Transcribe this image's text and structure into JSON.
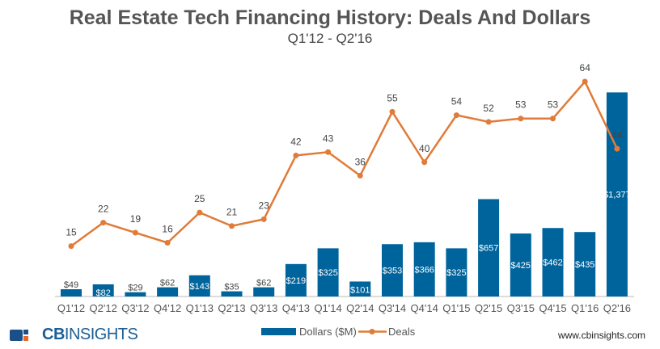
{
  "chart_data": {
    "type": "bar+line",
    "title": "Real Estate Tech  Financing History: Deals And Dollars",
    "subtitle": "Q1'12 - Q2'16",
    "categories": [
      "Q1'12",
      "Q2'12",
      "Q3'12",
      "Q4'12",
      "Q1'13",
      "Q2'13",
      "Q3'13",
      "Q4'13",
      "Q1'14",
      "Q2'14",
      "Q3'14",
      "Q4'14",
      "Q1'15",
      "Q2'15",
      "Q3'15",
      "Q4'15",
      "Q1'16",
      "Q2'16"
    ],
    "series": [
      {
        "name": "Dollars ($M)",
        "type": "bar",
        "color": "#00649c",
        "values": [
          49,
          82,
          29,
          62,
          143,
          35,
          62,
          219,
          325,
          101,
          353,
          366,
          325,
          657,
          425,
          462,
          435,
          1377
        ],
        "labels": [
          "$49",
          "$82",
          "$29",
          "$62",
          "$143",
          "$35",
          "$62",
          "$219",
          "$325",
          "$101",
          "$353",
          "$366",
          "$325",
          "$657",
          "$425",
          "$462",
          "$435",
          "$1,377"
        ]
      },
      {
        "name": "Deals",
        "type": "line",
        "color": "#e07b39",
        "values": [
          15,
          22,
          19,
          16,
          25,
          21,
          23,
          42,
          43,
          36,
          55,
          40,
          54,
          52,
          53,
          53,
          64,
          44
        ]
      }
    ],
    "ylim_dollars": [
      0,
      1450
    ],
    "ylim_deals": [
      0,
      64
    ],
    "grid": false,
    "legend": "bottom-center"
  },
  "footer": {
    "logo": "CBINSIGHTS",
    "logo_bold": "CB",
    "logo_rest": "INSIGHTS",
    "url": "www.cbinsights.com"
  }
}
